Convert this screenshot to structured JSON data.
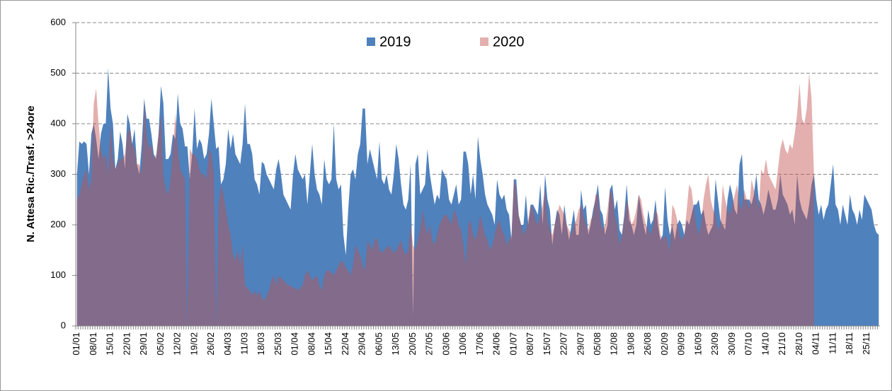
{
  "chart_data": {
    "type": "area",
    "y_label": "N. Attesa Ric./Trasf. >24ore",
    "ylim": [
      0,
      600
    ],
    "yticks": [
      0,
      100,
      200,
      300,
      400,
      500,
      600
    ],
    "grid": true,
    "legend": "top",
    "categories": [
      "01/01",
      null,
      null,
      null,
      null,
      null,
      null,
      "08/01",
      null,
      null,
      null,
      null,
      null,
      null,
      "15/01",
      null,
      null,
      null,
      null,
      null,
      null,
      "22/01",
      null,
      null,
      null,
      null,
      null,
      null,
      "29/01",
      null,
      null,
      null,
      null,
      null,
      null,
      "05/02",
      null,
      null,
      null,
      null,
      null,
      null,
      "12/02",
      null,
      null,
      null,
      null,
      null,
      null,
      "19/02",
      null,
      null,
      null,
      null,
      null,
      null,
      "26/02",
      null,
      null,
      null,
      null,
      null,
      null,
      "04/03",
      null,
      null,
      null,
      null,
      null,
      null,
      "11/03",
      null,
      null,
      null,
      null,
      null,
      null,
      "18/03",
      null,
      null,
      null,
      null,
      null,
      null,
      "25/03",
      null,
      null,
      null,
      null,
      null,
      null,
      "01/04",
      null,
      null,
      null,
      null,
      null,
      null,
      "08/04",
      null,
      null,
      null,
      null,
      null,
      null,
      "15/04",
      null,
      null,
      null,
      null,
      null,
      null,
      "22/04",
      null,
      null,
      null,
      null,
      null,
      null,
      "29/04",
      null,
      null,
      null,
      null,
      null,
      null,
      "06/05",
      null,
      null,
      null,
      null,
      null,
      null,
      "13/05",
      null,
      null,
      null,
      null,
      null,
      null,
      "20/05",
      null,
      null,
      null,
      null,
      null,
      null,
      "27/05",
      null,
      null,
      null,
      null,
      null,
      null,
      "03/06",
      null,
      null,
      null,
      null,
      null,
      null,
      "10/06",
      null,
      null,
      null,
      null,
      null,
      null,
      "17/06",
      null,
      null,
      null,
      null,
      null,
      null,
      "24/06",
      null,
      null,
      null,
      null,
      null,
      null,
      "01/07",
      null,
      null,
      null,
      null,
      null,
      null,
      "08/07",
      null,
      null,
      null,
      null,
      null,
      null,
      "15/07",
      null,
      null,
      null,
      null,
      null,
      null,
      "22/07",
      null,
      null,
      null,
      null,
      null,
      null,
      "29/07",
      null,
      null,
      null,
      null,
      null,
      null,
      "05/08",
      null,
      null,
      null,
      null,
      null,
      null,
      "12/08",
      null,
      null,
      null,
      null,
      null,
      null,
      "19/08",
      null,
      null,
      null,
      null,
      null,
      null,
      "26/08",
      null,
      null,
      null,
      null,
      null,
      null,
      "02/09",
      null,
      null,
      null,
      null,
      null,
      null,
      "09/09",
      null,
      null,
      null,
      null,
      null,
      null,
      "16/09",
      null,
      null,
      null,
      null,
      null,
      null,
      "23/09",
      null,
      null,
      null,
      null,
      null,
      null,
      "30/09",
      null,
      null,
      null,
      null,
      null,
      null,
      "07/10",
      null,
      null,
      null,
      null,
      null,
      null,
      "14/10",
      null,
      null,
      null,
      null,
      null,
      null,
      "21/10",
      null,
      null,
      null,
      null,
      null,
      null,
      "28/10",
      null,
      null,
      null,
      null,
      null,
      null,
      "04/11",
      null,
      null,
      null,
      null,
      null,
      null,
      "11/11",
      null,
      null,
      null,
      null,
      null,
      null,
      "18/11",
      null,
      null,
      null,
      null,
      null,
      null,
      "25/11",
      null,
      null,
      null,
      null,
      null
    ],
    "series": [
      {
        "name": "2019",
        "color": "#4f81bd",
        "opacity": 1,
        "values": [
          300,
          365,
          360,
          365,
          360,
          300,
          380,
          400,
          370,
          330,
          380,
          400,
          400,
          510,
          430,
          400,
          310,
          330,
          385,
          360,
          310,
          420,
          400,
          360,
          390,
          320,
          300,
          360,
          450,
          410,
          410,
          380,
          340,
          330,
          380,
          475,
          440,
          330,
          330,
          340,
          380,
          370,
          460,
          400,
          390,
          355,
          355,
          290,
          340,
          430,
          350,
          370,
          360,
          330,
          340,
          380,
          450,
          400,
          350,
          355,
          280,
          290,
          320,
          390,
          350,
          380,
          340,
          330,
          320,
          360,
          440,
          360,
          360,
          340,
          290,
          280,
          260,
          325,
          320,
          300,
          290,
          280,
          270,
          310,
          330,
          300,
          260,
          250,
          240,
          230,
          300,
          340,
          310,
          300,
          290,
          300,
          240,
          300,
          360,
          300,
          270,
          260,
          240,
          330,
          290,
          280,
          290,
          400,
          290,
          270,
          280,
          180,
          140,
          230,
          300,
          310,
          290,
          340,
          360,
          430,
          430,
          320,
          350,
          330,
          310,
          290,
          365,
          290,
          280,
          300,
          270,
          260,
          300,
          360,
          330,
          280,
          240,
          230,
          250,
          320,
          20,
          320,
          340,
          260,
          270,
          280,
          350,
          300,
          270,
          240,
          260,
          250,
          310,
          300,
          290,
          250,
          240,
          260,
          280,
          240,
          250,
          345,
          345,
          320,
          260,
          300,
          250,
          375,
          330,
          300,
          260,
          240,
          230,
          220,
          200,
          290,
          260,
          250,
          260,
          230,
          220,
          170,
          290,
          290,
          220,
          200,
          200,
          260,
          200,
          240,
          240,
          230,
          220,
          280,
          200,
          300,
          250,
          230,
          160,
          200,
          230,
          220,
          180,
          240,
          200,
          170,
          200,
          230,
          180,
          180,
          270,
          230,
          240,
          180,
          200,
          230,
          250,
          280,
          230,
          220,
          180,
          200,
          270,
          280,
          230,
          250,
          190,
          180,
          220,
          280,
          210,
          200,
          180,
          200,
          260,
          230,
          200,
          180,
          230,
          200,
          210,
          250,
          200,
          170,
          180,
          275,
          210,
          180,
          200,
          170,
          200,
          210,
          200,
          180,
          210,
          200,
          220,
          240,
          240,
          250,
          220,
          230,
          200,
          180,
          190,
          200,
          290,
          250,
          210,
          200,
          190,
          250,
          280,
          260,
          230,
          220,
          320,
          340,
          250,
          250,
          250,
          240,
          260,
          300,
          250,
          240,
          220,
          240,
          270,
          250,
          230,
          230,
          250,
          300,
          260,
          250,
          240,
          220,
          230,
          200,
          300,
          250,
          230,
          220,
          210,
          240,
          280,
          300,
          250,
          220,
          240,
          210,
          230,
          240,
          280,
          320,
          240,
          230,
          200,
          240,
          220,
          200,
          260,
          230,
          220,
          200,
          230,
          210,
          260,
          250,
          240,
          230,
          200,
          185,
          180
        ]
      },
      {
        "name": "2020",
        "color": "#c0504d",
        "opacity": 0.45,
        "values": [
          250,
          260,
          280,
          300,
          310,
          270,
          290,
          440,
          470,
          400,
          350,
          330,
          340,
          300,
          400,
          330,
          310,
          320,
          330,
          330,
          340,
          380,
          390,
          360,
          350,
          320,
          320,
          300,
          440,
          380,
          350,
          360,
          330,
          340,
          380,
          420,
          300,
          270,
          260,
          290,
          350,
          420,
          350,
          310,
          300,
          290,
          0,
          350,
          340,
          340,
          330,
          310,
          300,
          300,
          290,
          350,
          340,
          300,
          0,
          240,
          280,
          260,
          230,
          200,
          180,
          140,
          130,
          150,
          120,
          160,
          80,
          75,
          70,
          60,
          70,
          60,
          70,
          55,
          50,
          60,
          70,
          90,
          100,
          80,
          100,
          95,
          90,
          85,
          80,
          80,
          75,
          75,
          70,
          75,
          80,
          100,
          110,
          100,
          90,
          95,
          100,
          80,
          70,
          100,
          110,
          110,
          105,
          100,
          110,
          120,
          130,
          125,
          115,
          110,
          100,
          120,
          160,
          150,
          140,
          120,
          110,
          170,
          160,
          150,
          170,
          175,
          150,
          145,
          150,
          155,
          160,
          150,
          145,
          150,
          160,
          170,
          150,
          140,
          150,
          200,
          160,
          150,
          170,
          190,
          230,
          200,
          180,
          200,
          170,
          160,
          180,
          200,
          210,
          220,
          220,
          210,
          200,
          230,
          220,
          200,
          190,
          160,
          120,
          200,
          210,
          180,
          170,
          190,
          220,
          200,
          180,
          170,
          150,
          160,
          180,
          200,
          210,
          190,
          180,
          160,
          170,
          180,
          290,
          270,
          220,
          200,
          180,
          190,
          210,
          240,
          230,
          210,
          200,
          220,
          240,
          270,
          210,
          190,
          180,
          200,
          220,
          240,
          230,
          220,
          200,
          190,
          180,
          200,
          210,
          230,
          240,
          220,
          200,
          190,
          210,
          220,
          260,
          260,
          210,
          190,
          200,
          230,
          270,
          260,
          220,
          200,
          160,
          180,
          210,
          250,
          230,
          200,
          210,
          230,
          260,
          250,
          220,
          200,
          190,
          180,
          200,
          230,
          220,
          180,
          170,
          180,
          170,
          150,
          240,
          230,
          210,
          180,
          170,
          180,
          230,
          280,
          270,
          230,
          200,
          180,
          200,
          250,
          280,
          300,
          250,
          230,
          220,
          190,
          200,
          280,
          250,
          230,
          220,
          240,
          260,
          280,
          240,
          230,
          270,
          250,
          230,
          290,
          270,
          250,
          230,
          310,
          300,
          330,
          300,
          290,
          280,
          270,
          310,
          350,
          370,
          350,
          340,
          360,
          350,
          380,
          420,
          480,
          410,
          400,
          430,
          500,
          450,
          300,
          null,
          null,
          null,
          null,
          null,
          null,
          null,
          null,
          null,
          null,
          null,
          null,
          null,
          null,
          null,
          null,
          null,
          null,
          null,
          null,
          null,
          null,
          null,
          null,
          null,
          null,
          null
        ]
      }
    ]
  }
}
